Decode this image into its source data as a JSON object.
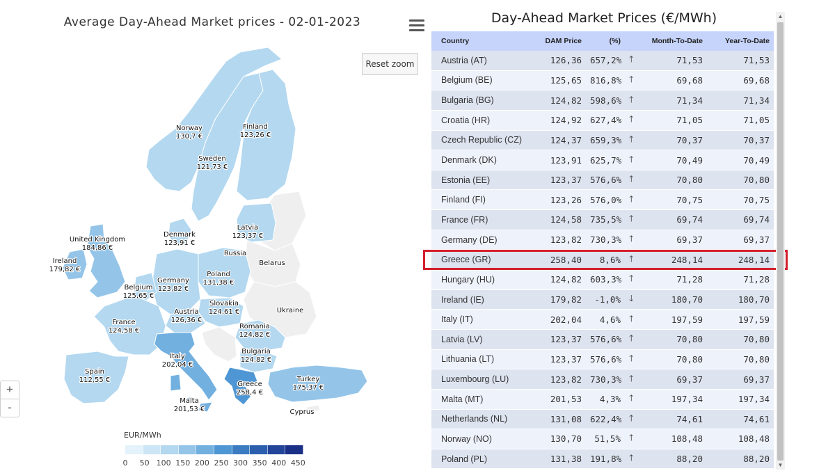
{
  "map": {
    "title": "Average Day-Ahead Market prices - 02-01-2023",
    "reset_zoom_label": "Reset zoom",
    "zoom_in_label": "+",
    "zoom_out_label": "-",
    "legend": {
      "title": "EUR/MWh",
      "ticks": [
        "0",
        "50",
        "100",
        "150",
        "200",
        "250",
        "300",
        "350",
        "400",
        "450"
      ],
      "colors": [
        "#e3f2fb",
        "#cde6f6",
        "#b3d8f0",
        "#94c5e9",
        "#72b0e0",
        "#4f97d4",
        "#3a7bc2",
        "#2b5fae",
        "#224499",
        "#1a2f86"
      ]
    },
    "countries": [
      {
        "id": "norway",
        "name": "Norway",
        "value": "130,7 €",
        "price": 130.7
      },
      {
        "id": "finland",
        "name": "Finland",
        "value": "123,26 €",
        "price": 123.26
      },
      {
        "id": "sweden",
        "name": "Sweden",
        "value": "121,73 €",
        "price": 121.73
      },
      {
        "id": "denmark",
        "name": "Denmark",
        "value": "123,91 €",
        "price": 123.91
      },
      {
        "id": "latvia",
        "name": "Latvia",
        "value": "123,37 €",
        "price": 123.37
      },
      {
        "id": "united-kingdom",
        "name": "United Kingdom",
        "value": "184,86 €",
        "price": 184.86
      },
      {
        "id": "ireland",
        "name": "Ireland",
        "value": "179,82 €",
        "price": 179.82
      },
      {
        "id": "russia",
        "name": "Russia",
        "value": "",
        "price": null
      },
      {
        "id": "belarus",
        "name": "Belarus",
        "value": "",
        "price": null
      },
      {
        "id": "poland",
        "name": "Poland",
        "value": "131,38 €",
        "price": 131.38
      },
      {
        "id": "germany",
        "name": "Germany",
        "value": "123,82 €",
        "price": 123.82
      },
      {
        "id": "belgium",
        "name": "Belgium",
        "value": "125,65 €",
        "price": 125.65
      },
      {
        "id": "slovakia",
        "name": "Slovakia",
        "value": "124,61 €",
        "price": 124.61
      },
      {
        "id": "ukraine",
        "name": "Ukraine",
        "value": "",
        "price": null
      },
      {
        "id": "austria",
        "name": "Austria",
        "value": "126,36 €",
        "price": 126.36
      },
      {
        "id": "france",
        "name": "France",
        "value": "124,58 €",
        "price": 124.58
      },
      {
        "id": "romania",
        "name": "Romania",
        "value": "124,82 €",
        "price": 124.82
      },
      {
        "id": "bulgaria",
        "name": "Bulgaria",
        "value": "124,82 €",
        "price": 124.82
      },
      {
        "id": "italy",
        "name": "Italy",
        "value": "202,04 €",
        "price": 202.04
      },
      {
        "id": "spain",
        "name": "Spain",
        "value": "112,55 €",
        "price": 112.55
      },
      {
        "id": "greece",
        "name": "Greece",
        "value": "258,4 €",
        "price": 258.4
      },
      {
        "id": "turkey",
        "name": "Turkey",
        "value": "175,37 €",
        "price": 175.37
      },
      {
        "id": "malta",
        "name": "Malta",
        "value": "201,53 €",
        "price": 201.53
      },
      {
        "id": "cyprus",
        "name": "Cyprus",
        "value": "",
        "price": null
      }
    ]
  },
  "table": {
    "title": "Day-Ahead Market Prices (€/MWh)",
    "columns": [
      "Country",
      "DAM Price",
      "(%)",
      "",
      "Month-To-Date",
      "Year-To-Date"
    ],
    "highlighted_row": "Greece (GR)",
    "rows": [
      {
        "country": "Austria (AT)",
        "dam": "126,36",
        "pct": "657,2%",
        "dir": "up",
        "mtd": "71,53",
        "ytd": "71,53"
      },
      {
        "country": "Belgium (BE)",
        "dam": "125,65",
        "pct": "816,8%",
        "dir": "up",
        "mtd": "69,68",
        "ytd": "69,68"
      },
      {
        "country": "Bulgaria (BG)",
        "dam": "124,82",
        "pct": "598,6%",
        "dir": "up",
        "mtd": "71,34",
        "ytd": "71,34"
      },
      {
        "country": "Croatia (HR)",
        "dam": "124,92",
        "pct": "627,4%",
        "dir": "up",
        "mtd": "71,05",
        "ytd": "71,05"
      },
      {
        "country": "Czech Republic (CZ)",
        "dam": "124,37",
        "pct": "659,3%",
        "dir": "up",
        "mtd": "70,37",
        "ytd": "70,37"
      },
      {
        "country": "Denmark (DK)",
        "dam": "123,91",
        "pct": "625,7%",
        "dir": "up",
        "mtd": "70,49",
        "ytd": "70,49"
      },
      {
        "country": "Estonia (EE)",
        "dam": "123,37",
        "pct": "576,6%",
        "dir": "up",
        "mtd": "70,80",
        "ytd": "70,80"
      },
      {
        "country": "Finland (FI)",
        "dam": "123,26",
        "pct": "576,0%",
        "dir": "up",
        "mtd": "70,75",
        "ytd": "70,75"
      },
      {
        "country": "France (FR)",
        "dam": "124,58",
        "pct": "735,5%",
        "dir": "up",
        "mtd": "69,74",
        "ytd": "69,74"
      },
      {
        "country": "Germany (DE)",
        "dam": "123,82",
        "pct": "730,3%",
        "dir": "up",
        "mtd": "69,37",
        "ytd": "69,37"
      },
      {
        "country": "Greece (GR)",
        "dam": "258,40",
        "pct": "8,6%",
        "dir": "up",
        "mtd": "248,14",
        "ytd": "248,14"
      },
      {
        "country": "Hungary (HU)",
        "dam": "124,82",
        "pct": "603,3%",
        "dir": "up",
        "mtd": "71,28",
        "ytd": "71,28"
      },
      {
        "country": "Ireland (IE)",
        "dam": "179,82",
        "pct": "-1,0%",
        "dir": "down",
        "mtd": "180,70",
        "ytd": "180,70"
      },
      {
        "country": "Italy (IT)",
        "dam": "202,04",
        "pct": "4,6%",
        "dir": "up",
        "mtd": "197,59",
        "ytd": "197,59"
      },
      {
        "country": "Latvia (LV)",
        "dam": "123,37",
        "pct": "576,6%",
        "dir": "up",
        "mtd": "70,80",
        "ytd": "70,80"
      },
      {
        "country": "Lithuania (LT)",
        "dam": "123,37",
        "pct": "576,6%",
        "dir": "up",
        "mtd": "70,80",
        "ytd": "70,80"
      },
      {
        "country": "Luxembourg (LU)",
        "dam": "123,82",
        "pct": "730,3%",
        "dir": "up",
        "mtd": "69,37",
        "ytd": "69,37"
      },
      {
        "country": "Malta (MT)",
        "dam": "201,53",
        "pct": "4,3%",
        "dir": "up",
        "mtd": "197,34",
        "ytd": "197,34"
      },
      {
        "country": "Netherlands (NL)",
        "dam": "131,08",
        "pct": "622,4%",
        "dir": "up",
        "mtd": "74,61",
        "ytd": "74,61"
      },
      {
        "country": "Norway (NO)",
        "dam": "130,70",
        "pct": "51,5%",
        "dir": "up",
        "mtd": "108,48",
        "ytd": "108,48"
      },
      {
        "country": "Poland (PL)",
        "dam": "131,38",
        "pct": "191,8%",
        "dir": "up",
        "mtd": "88,20",
        "ytd": "88,20"
      }
    ],
    "arrow_up_glyph": "🡑",
    "arrow_down_glyph": "🡓"
  },
  "colors": {
    "highlight_border": "#d31f2b",
    "header_bg": "#c6d4fb",
    "positive": "#2a8a2e",
    "negative": "#e01a1a",
    "no_data_country": "#efefef"
  }
}
